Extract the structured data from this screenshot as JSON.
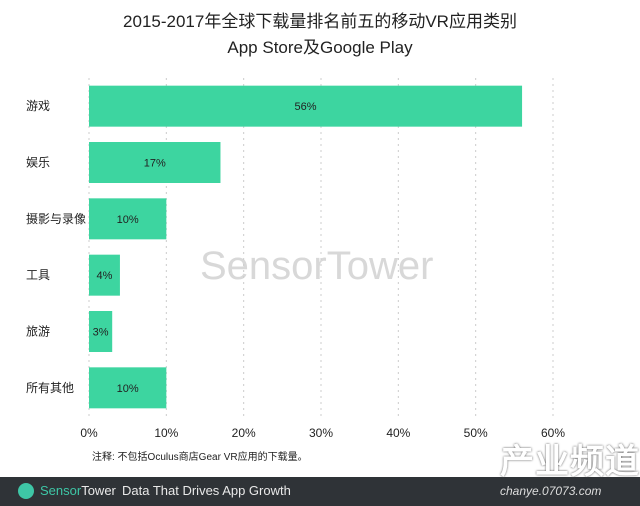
{
  "chart_data": {
    "type": "bar",
    "orientation": "horizontal",
    "title": "2015-2017年全球下载量排名前五的移动VR应用类别",
    "subtitle": "App Store及Google Play",
    "categories": [
      "游戏",
      "娱乐",
      "摄影与录像",
      "工具",
      "旅游",
      "所有其他"
    ],
    "values": [
      56,
      17,
      10,
      4,
      3,
      10
    ],
    "data_labels": [
      "56%",
      "17%",
      "10%",
      "4%",
      "3%",
      "10%"
    ],
    "xlim": [
      0,
      60
    ],
    "xticks": [
      "0%",
      "10%",
      "20%",
      "30%",
      "40%",
      "50%",
      "60%"
    ],
    "grid": true,
    "bar_color": "#3dd5a0",
    "note": "注释: 不包括Oculus商店Gear VR应用的下载量。"
  },
  "watermark": "SensorTower",
  "footer": {
    "brand_a": "Sensor",
    "brand_b": "Tower",
    "tagline": "Data That Drives App Growth"
  },
  "site_watermark": {
    "title": "产业频道",
    "url": "chanye.07073.com"
  }
}
